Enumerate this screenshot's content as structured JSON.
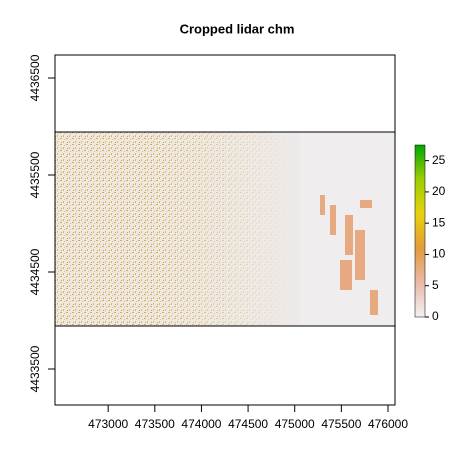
{
  "chart_data": {
    "type": "raster",
    "title": "Cropped lidar chm",
    "xlim": [
      472430,
      476075
    ],
    "xticks": [
      473000,
      473500,
      474000,
      474500,
      475000,
      475500,
      476000
    ],
    "ylim": [
      4433129,
      4436737
    ],
    "yticks": [
      4433500,
      4434500,
      4435500,
      4436500
    ],
    "colorbar": {
      "lim": [
        0,
        27.5
      ],
      "ticks": [
        0,
        5,
        10,
        15,
        20,
        25
      ],
      "colors": [
        "#f2f2f2",
        "#eab8a8",
        "#e39b3a",
        "#e8d20c",
        "#9ccf00",
        "#00a600"
      ]
    }
  }
}
